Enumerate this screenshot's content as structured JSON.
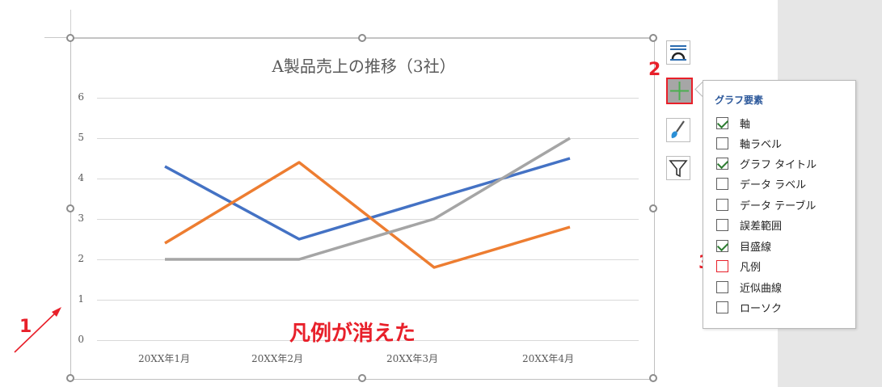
{
  "chart_data": {
    "type": "line",
    "title": "A製品売上の推移（3社）",
    "categories": [
      "20XX年1月",
      "20XX年2月",
      "20XX年3月",
      "20XX年4月"
    ],
    "series": [
      {
        "values": [
          4.3,
          2.5,
          3.5,
          4.5
        ],
        "color": "#4472c4"
      },
      {
        "values": [
          2.4,
          4.4,
          1.8,
          2.8
        ],
        "color": "#ed7d31"
      },
      {
        "values": [
          2.0,
          2.0,
          3.0,
          5.0
        ],
        "color": "#a5a5a5"
      }
    ],
    "yticks": [
      "0",
      "1",
      "2",
      "3",
      "4",
      "5",
      "6"
    ],
    "ylim": [
      0,
      6
    ],
    "grid": true,
    "legend": "none"
  },
  "annotations": {
    "step1": "1",
    "step2": "2",
    "step3": "3",
    "message": "凡例が消えた"
  },
  "side_buttons": [
    "layout-icon",
    "chart-elements-plus-icon",
    "chart-style-brush-icon",
    "chart-filter-icon"
  ],
  "panel": {
    "title": "グラフ要素",
    "items": [
      {
        "label": "軸",
        "checked": true
      },
      {
        "label": "軸ラベル",
        "checked": false
      },
      {
        "label": "グラフ タイトル",
        "checked": true
      },
      {
        "label": "データ ラベル",
        "checked": false
      },
      {
        "label": "データ テーブル",
        "checked": false
      },
      {
        "label": "誤差範囲",
        "checked": false
      },
      {
        "label": "目盛線",
        "checked": true
      },
      {
        "label": "凡例",
        "checked": false
      },
      {
        "label": "近似曲線",
        "checked": false
      },
      {
        "label": "ローソク",
        "checked": false
      }
    ]
  },
  "colors": {
    "accent_red": "#e8202a",
    "panel_title": "#2b579a"
  }
}
